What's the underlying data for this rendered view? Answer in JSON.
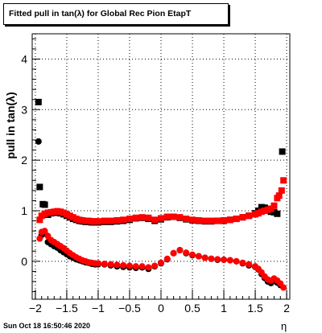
{
  "chart_data": {
    "type": "scatter",
    "title": "Fitted pull in tan(λ) for Global Rec Pion EtapT",
    "xlabel": "η",
    "ylabel": "pull in tan(λ)",
    "xlim": [
      -2.05,
      2.05
    ],
    "ylim": [
      -0.75,
      4.5
    ],
    "x_ticks": [
      -2,
      -1.5,
      -1,
      -0.5,
      0,
      0.5,
      1,
      1.5,
      2
    ],
    "x_tick_labels": [
      "−2",
      "−1.5",
      "−1",
      "−0.5",
      "0",
      "0.5",
      "1",
      "1.5",
      "2"
    ],
    "y_ticks": [
      0,
      1,
      2,
      3,
      4
    ],
    "y_tick_labels": [
      "0",
      "1",
      "2",
      "3",
      "4"
    ],
    "grid": true,
    "series": [
      {
        "marker": "square",
        "color": "#000000",
        "kind": "mean",
        "x": [
          -1.95,
          -1.93,
          -1.88,
          -1.85,
          -1.8,
          -1.75,
          -1.7,
          -1.65,
          -1.6,
          -1.55,
          -1.5,
          -1.45,
          -1.4,
          -1.35,
          -1.3,
          -1.25,
          -1.2,
          -1.15,
          -1.1,
          -1.05,
          -1.0,
          -0.9,
          -0.8,
          -0.7,
          -0.6,
          -0.5,
          -0.4,
          -0.3,
          -0.2,
          -0.1,
          0.0,
          0.1,
          0.2,
          0.3,
          0.4,
          0.5,
          0.6,
          0.7,
          0.8,
          0.9,
          1.0,
          1.1,
          1.2,
          1.3,
          1.4,
          1.5,
          1.55,
          1.6,
          1.65,
          1.7,
          1.75,
          1.8,
          1.85,
          1.93
        ],
        "y": [
          3.15,
          1.47,
          1.13,
          1.12,
          0.92,
          0.95,
          0.96,
          0.97,
          0.95,
          0.93,
          0.9,
          0.87,
          0.84,
          0.82,
          0.8,
          0.79,
          0.78,
          0.78,
          0.77,
          0.77,
          0.77,
          0.78,
          0.78,
          0.79,
          0.8,
          0.82,
          0.85,
          0.86,
          0.84,
          0.8,
          0.83,
          0.87,
          0.88,
          0.86,
          0.83,
          0.81,
          0.8,
          0.79,
          0.79,
          0.8,
          0.8,
          0.82,
          0.84,
          0.87,
          0.9,
          0.95,
          1.0,
          1.07,
          1.06,
          1.02,
          0.98,
          0.97,
          0.94,
          2.17
        ]
      },
      {
        "marker": "circle",
        "color": "#000000",
        "kind": "sigma",
        "x": [
          -1.95,
          -1.9,
          -1.85,
          -1.8,
          -1.75,
          -1.7,
          -1.65,
          -1.6,
          -1.55,
          -1.5,
          -1.45,
          -1.4,
          -1.35,
          -1.3,
          -1.25,
          -1.2,
          -1.15,
          -1.1,
          -1.05,
          -1.0,
          -0.9,
          -0.8,
          -0.7,
          -0.6,
          -0.5,
          -0.4,
          -0.3,
          -0.2,
          -0.1,
          0.0,
          0.1,
          0.2,
          0.3,
          0.4,
          0.5,
          0.6,
          0.7,
          0.8,
          0.9,
          1.0,
          1.1,
          1.2,
          1.3,
          1.4,
          1.5,
          1.55,
          1.6,
          1.65,
          1.7,
          1.75,
          1.8,
          1.85,
          1.9
        ],
        "y": [
          2.37,
          0.52,
          0.55,
          0.38,
          0.34,
          0.3,
          0.27,
          0.22,
          0.18,
          0.14,
          0.1,
          0.07,
          0.04,
          0.02,
          0.0,
          -0.02,
          -0.03,
          -0.05,
          -0.06,
          -0.06,
          -0.06,
          -0.08,
          -0.1,
          -0.11,
          -0.12,
          -0.13,
          -0.12,
          -0.15,
          -0.1,
          -0.04,
          0.04,
          0.16,
          0.22,
          0.16,
          0.12,
          0.1,
          0.07,
          0.05,
          0.03,
          0.03,
          0.02,
          0.0,
          -0.04,
          -0.08,
          -0.11,
          -0.16,
          -0.25,
          -0.33,
          -0.4,
          -0.43,
          -0.37,
          -0.42,
          -0.47
        ]
      },
      {
        "marker": "square",
        "color": "#ff0000",
        "kind": "mean",
        "x": [
          -1.93,
          -1.9,
          -1.85,
          -1.8,
          -1.75,
          -1.7,
          -1.65,
          -1.6,
          -1.55,
          -1.5,
          -1.45,
          -1.4,
          -1.35,
          -1.3,
          -1.25,
          -1.2,
          -1.15,
          -1.1,
          -1.05,
          -1.0,
          -0.9,
          -0.8,
          -0.7,
          -0.6,
          -0.5,
          -0.4,
          -0.3,
          -0.2,
          -0.1,
          0.0,
          0.1,
          0.2,
          0.3,
          0.4,
          0.5,
          0.6,
          0.7,
          0.8,
          0.9,
          1.0,
          1.1,
          1.2,
          1.3,
          1.4,
          1.5,
          1.55,
          1.6,
          1.65,
          1.7,
          1.75,
          1.8,
          1.85,
          1.88,
          1.92,
          1.95
        ],
        "y": [
          0.82,
          0.9,
          0.94,
          0.96,
          0.97,
          0.98,
          0.99,
          0.98,
          0.96,
          0.93,
          0.9,
          0.87,
          0.84,
          0.82,
          0.81,
          0.8,
          0.8,
          0.79,
          0.79,
          0.79,
          0.8,
          0.8,
          0.81,
          0.82,
          0.84,
          0.86,
          0.87,
          0.86,
          0.82,
          0.85,
          0.88,
          0.88,
          0.87,
          0.84,
          0.82,
          0.81,
          0.8,
          0.8,
          0.8,
          0.81,
          0.82,
          0.84,
          0.87,
          0.9,
          0.93,
          0.95,
          0.98,
          1.0,
          1.02,
          1.04,
          1.1,
          1.25,
          1.3,
          1.4,
          1.6
        ]
      },
      {
        "marker": "circle",
        "color": "#ff0000",
        "kind": "sigma",
        "x": [
          -1.93,
          -1.9,
          -1.85,
          -1.8,
          -1.75,
          -1.7,
          -1.65,
          -1.6,
          -1.55,
          -1.5,
          -1.45,
          -1.4,
          -1.35,
          -1.3,
          -1.25,
          -1.2,
          -1.15,
          -1.1,
          -1.05,
          -1.0,
          -0.9,
          -0.8,
          -0.7,
          -0.6,
          -0.5,
          -0.4,
          -0.3,
          -0.2,
          -0.1,
          0.0,
          0.1,
          0.2,
          0.3,
          0.4,
          0.5,
          0.6,
          0.7,
          0.8,
          0.9,
          1.0,
          1.1,
          1.2,
          1.3,
          1.4,
          1.5,
          1.55,
          1.6,
          1.65,
          1.7,
          1.75,
          1.8,
          1.85,
          1.9,
          1.95
        ],
        "y": [
          0.45,
          0.58,
          0.6,
          0.5,
          0.42,
          0.38,
          0.34,
          0.3,
          0.26,
          0.21,
          0.16,
          0.12,
          0.08,
          0.05,
          0.02,
          0.0,
          -0.02,
          -0.03,
          -0.04,
          -0.04,
          -0.05,
          -0.06,
          -0.07,
          -0.08,
          -0.09,
          -0.1,
          -0.1,
          -0.12,
          -0.09,
          -0.03,
          0.05,
          0.16,
          0.22,
          0.17,
          0.13,
          0.1,
          0.07,
          0.05,
          0.04,
          0.03,
          0.02,
          0.0,
          -0.03,
          -0.06,
          -0.1,
          -0.15,
          -0.22,
          -0.3,
          -0.36,
          -0.38,
          -0.34,
          -0.38,
          -0.44,
          -0.52
        ]
      }
    ]
  },
  "footer": {
    "timestamp": "Sun Oct 18 16:50:46 2020"
  }
}
